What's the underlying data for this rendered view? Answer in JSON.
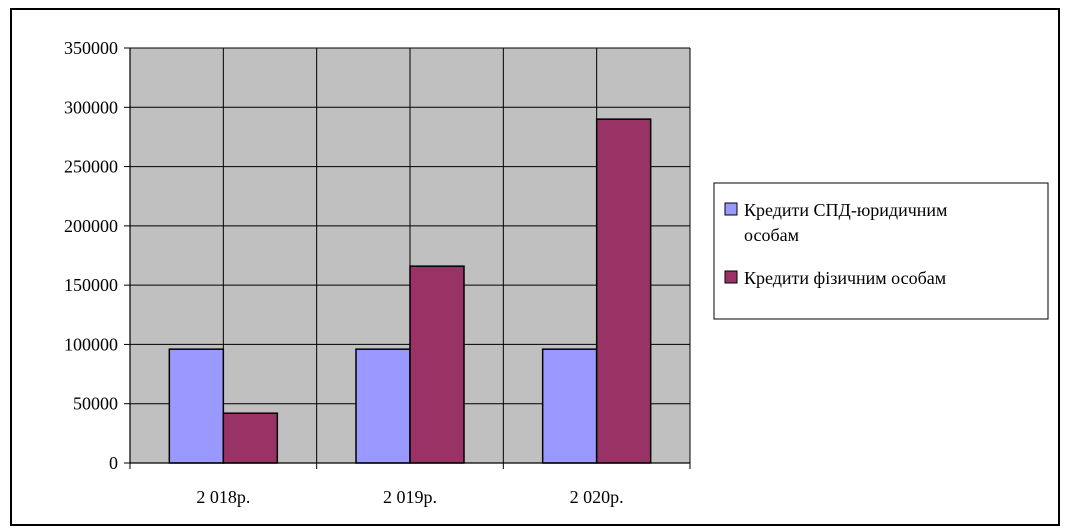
{
  "chart_data": {
    "type": "bar",
    "categories": [
      "2 018р.",
      "2 019р.",
      "2 020р."
    ],
    "series": [
      {
        "name": "Кредити СПД-юридичним особам",
        "values": [
          96000,
          96000,
          96000
        ],
        "color": "#9999ff"
      },
      {
        "name": "Кредити фізичним особам",
        "values": [
          42000,
          166000,
          290000
        ],
        "color": "#993366"
      }
    ],
    "ylim": [
      0,
      350000
    ],
    "yticks": [
      0,
      50000,
      100000,
      150000,
      200000,
      250000,
      300000,
      350000
    ],
    "ytick_labels": [
      "0",
      "50000",
      "100000",
      "150000",
      "200000",
      "250000",
      "300000",
      "350000"
    ],
    "grid": true,
    "plot_background": "#c0c0c0",
    "legend_position": "right",
    "legend_lines": [
      [
        "Кредити СПД-юридичним",
        "особам"
      ],
      [
        "Кредити фізичним особам"
      ]
    ]
  }
}
